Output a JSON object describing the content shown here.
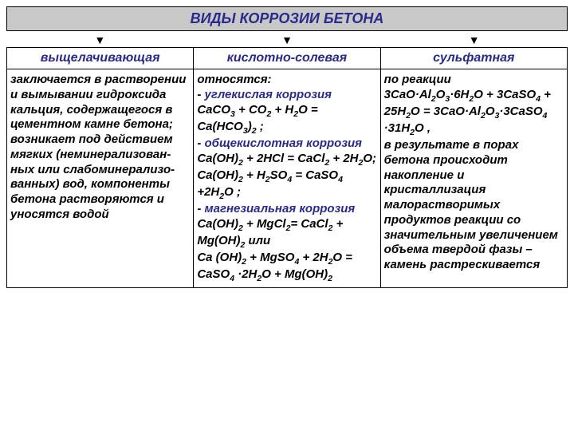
{
  "title": "ВИДЫ КОРРОЗИИ БЕТОНА",
  "title_bg": "#c8c8c8",
  "title_color": "#2a2a8a",
  "title_fontsize": 18,
  "arrow_glyph": "▼",
  "header_color": "#2a2a8a",
  "header_fontsize": 16,
  "body_fontsize": 15,
  "body_color": "#000000",
  "highlight_color": "#2a2a8a",
  "columns": [
    {
      "header": "выщелачивающая",
      "segments": [
        {
          "t": "заключается в растворении и вымывании гидроксида кальция, содержащегося в цементном камне бетона;"
        },
        {
          "t": "возникает под действием мягких (неминерализован-ных или слабоминерализо-ванных) вод, компоненты бетона растворяются и уносятся водой"
        }
      ]
    },
    {
      "header": "кислотно-солевая",
      "segments": [
        {
          "t": "относятся:"
        },
        {
          "t": "- ",
          "after": "углекислая коррозия",
          "hl": true
        },
        {
          "f": "CaCO_3 + CO_2 + H_2O = Ca(HCO_3)_2 ;"
        },
        {
          "t": "- ",
          "after": "общекислотная коррозия",
          "hl": true
        },
        {
          "f": "Ca(OH)_2 + 2HCl = CaCl_2 + 2H_2O;"
        },
        {
          "f": "Ca(OH)_2 + H_2SO_4 = CaSO_4 +2H_2O ;"
        },
        {
          "t": "- ",
          "after": "магнезиальная коррозия",
          "hl": true
        },
        {
          "f": "Ca(OH)_2 + MgCl_2= CaCl_2 + Mg(OH)_2   или"
        },
        {
          "f": "Ca (OH)_2 + MgSO_4 + 2H_2O = CaSO_4 ·2H_2O + Mg(OH)_2"
        }
      ]
    },
    {
      "header": "сульфатная",
      "segments": [
        {
          "t": "по реакции"
        },
        {
          "f": "3CaO·Al_2O_3·6H_2O + 3CaSO_4 + 25H_2O = 3CaO·Al_2O_3·3CaSO_4 ·31H_2O ,"
        },
        {
          "t": "в результате в порах бетона происходит накопление и кристаллизация малорастворимых продуктов реакции со значительным увеличением объема твердой фазы – камень растрескивается"
        }
      ]
    }
  ]
}
